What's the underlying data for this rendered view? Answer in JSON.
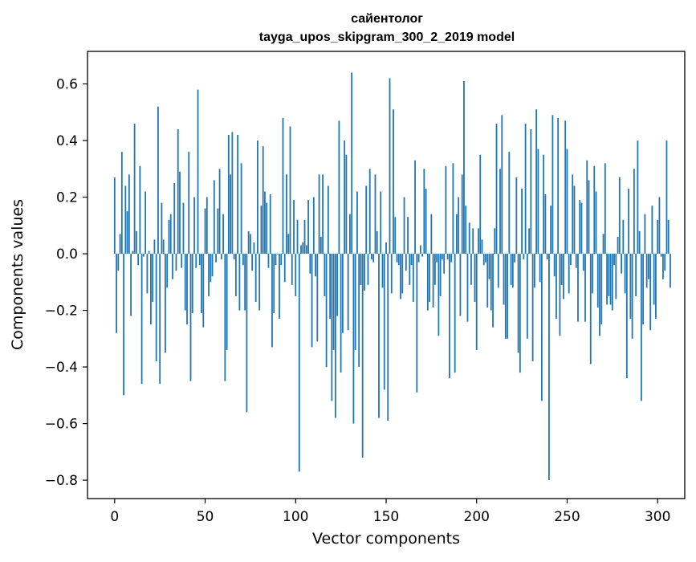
{
  "chart_data": {
    "type": "bar",
    "title": "сайентолог",
    "subtitle": "tayga_upos_skipgram_300_2_2019 model",
    "xlabel": "Vector components",
    "ylabel": "Components values",
    "xlim": [
      -15,
      315
    ],
    "ylim": [
      -0.865,
      0.715
    ],
    "x_ticks": [
      0,
      50,
      100,
      150,
      200,
      250,
      300
    ],
    "x_tick_labels": [
      "0",
      "50",
      "100",
      "150",
      "200",
      "250",
      "300"
    ],
    "y_ticks": [
      -0.8,
      -0.6,
      -0.4,
      -0.2,
      0.0,
      0.2,
      0.4,
      0.6
    ],
    "y_tick_labels": [
      "−0.8",
      "−0.6",
      "−0.4",
      "−0.2",
      "0.0",
      "0.2",
      "0.4",
      "0.6"
    ],
    "bar_color": "#1f77b4",
    "grid": false,
    "values": [
      0.27,
      -0.28,
      -0.06,
      0.07,
      0.36,
      -0.5,
      0.24,
      0.15,
      0.28,
      -0.22,
      0.01,
      0.46,
      0.08,
      -0.04,
      0.31,
      -0.46,
      -0.01,
      0.22,
      -0.14,
      0.01,
      -0.25,
      -0.17,
      0.05,
      -0.38,
      0.52,
      -0.46,
      0.18,
      0.05,
      -0.35,
      -0.12,
      0.12,
      0.14,
      -0.09,
      0.25,
      -0.06,
      0.44,
      0.29,
      -0.05,
      0.18,
      -0.2,
      -0.25,
      0.36,
      -0.45,
      -0.21,
      0.2,
      -0.05,
      0.58,
      -0.04,
      -0.21,
      -0.26,
      0.16,
      0.2,
      -0.15,
      -0.1,
      -0.08,
      0.26,
      -0.03,
      0.16,
      0.3,
      -0.02,
      0.14,
      -0.45,
      -0.34,
      0.42,
      0.28,
      0.43,
      -0.02,
      -0.15,
      0.42,
      -0.2,
      0.32,
      -0.04,
      -0.2,
      -0.56,
      0.08,
      0.07,
      -0.06,
      0.04,
      -0.17,
      0.4,
      -0.2,
      0.17,
      0.38,
      0.22,
      0.18,
      -0.05,
      0.21,
      -0.33,
      -0.21,
      -0.04,
      0.0,
      -0.23,
      -0.04,
      0.48,
      -0.1,
      0.28,
      0.07,
      0.45,
      -0.11,
      0.19,
      -0.15,
      0.12,
      -0.77,
      0.03,
      0.04,
      0.12,
      0.03,
      0.19,
      -0.07,
      -0.33,
      0.2,
      -0.08,
      -0.31,
      0.28,
      0.06,
      0.28,
      -0.15,
      -0.4,
      0.24,
      -0.23,
      -0.52,
      -0.34,
      -0.58,
      -0.22,
      0.47,
      -0.42,
      -0.28,
      0.4,
      0.35,
      -0.27,
      0.14,
      0.64,
      -0.6,
      -0.34,
      0.22,
      -0.4,
      -0.11,
      -0.72,
      -0.13,
      0.24,
      -0.11,
      0.3,
      -0.02,
      -0.03,
      0.28,
      0.08,
      -0.58,
      0.22,
      -0.12,
      -0.48,
      0.04,
      -0.59,
      0.62,
      -0.14,
      0.51,
      0.13,
      -0.03,
      -0.04,
      -0.16,
      -0.14,
      0.2,
      -0.06,
      0.13,
      -0.11,
      -0.04,
      -0.17,
      0.33,
      -0.49,
      -0.03,
      0.03,
      -0.01,
      0.3,
      0.23,
      -0.2,
      -0.17,
      0.14,
      -0.19,
      -0.11,
      -0.03,
      -0.29,
      -0.15,
      -0.02,
      -0.07,
      0.31,
      -0.02,
      -0.44,
      -0.03,
      0.32,
      -0.42,
      0.14,
      0.2,
      -0.22,
      0.28,
      0.61,
      0.17,
      -0.24,
      0.11,
      -0.11,
      0.09,
      -0.17,
      -0.34,
      0.09,
      0.35,
      0.05,
      -0.04,
      -0.03,
      -0.19,
      -0.09,
      -0.2,
      -0.26,
      0.09,
      0.46,
      -0.12,
      0.3,
      0.49,
      -0.18,
      -0.3,
      -0.3,
      0.36,
      -0.11,
      -0.12,
      -0.03,
      0.27,
      -0.35,
      -0.42,
      0.23,
      -0.02,
      0.46,
      -0.3,
      0.09,
      0.44,
      -0.38,
      -0.12,
      0.51,
      0.37,
      -0.1,
      -0.52,
      0.35,
      0.21,
      -0.02,
      -0.8,
      0.17,
      0.49,
      -0.08,
      -0.23,
      0.48,
      -0.29,
      -0.11,
      -0.16,
      0.47,
      0.37,
      -0.14,
      -0.04,
      0.28,
      0.24,
      -0.05,
      -0.24,
      0.19,
      0.18,
      -0.06,
      -0.24,
      0.33,
      0.26,
      -0.39,
      -0.14,
      0.31,
      0.22,
      -0.19,
      -0.29,
      -0.25,
      0.07,
      0.32,
      -0.18,
      -0.15,
      -0.18,
      -0.2,
      -0.04,
      -0.16,
      0.06,
      0.27,
      -0.07,
      0.12,
      -0.14,
      -0.44,
      0.23,
      -0.23,
      -0.3,
      0.3,
      -0.15,
      0.4,
      0.08,
      -0.52,
      -0.25,
      0.14,
      -0.12,
      -0.09,
      -0.27,
      0.17,
      -0.18,
      -0.23,
      0.12,
      0.2,
      -0.01,
      -0.09,
      -0.06,
      0.4,
      0.12,
      -0.12
    ]
  }
}
